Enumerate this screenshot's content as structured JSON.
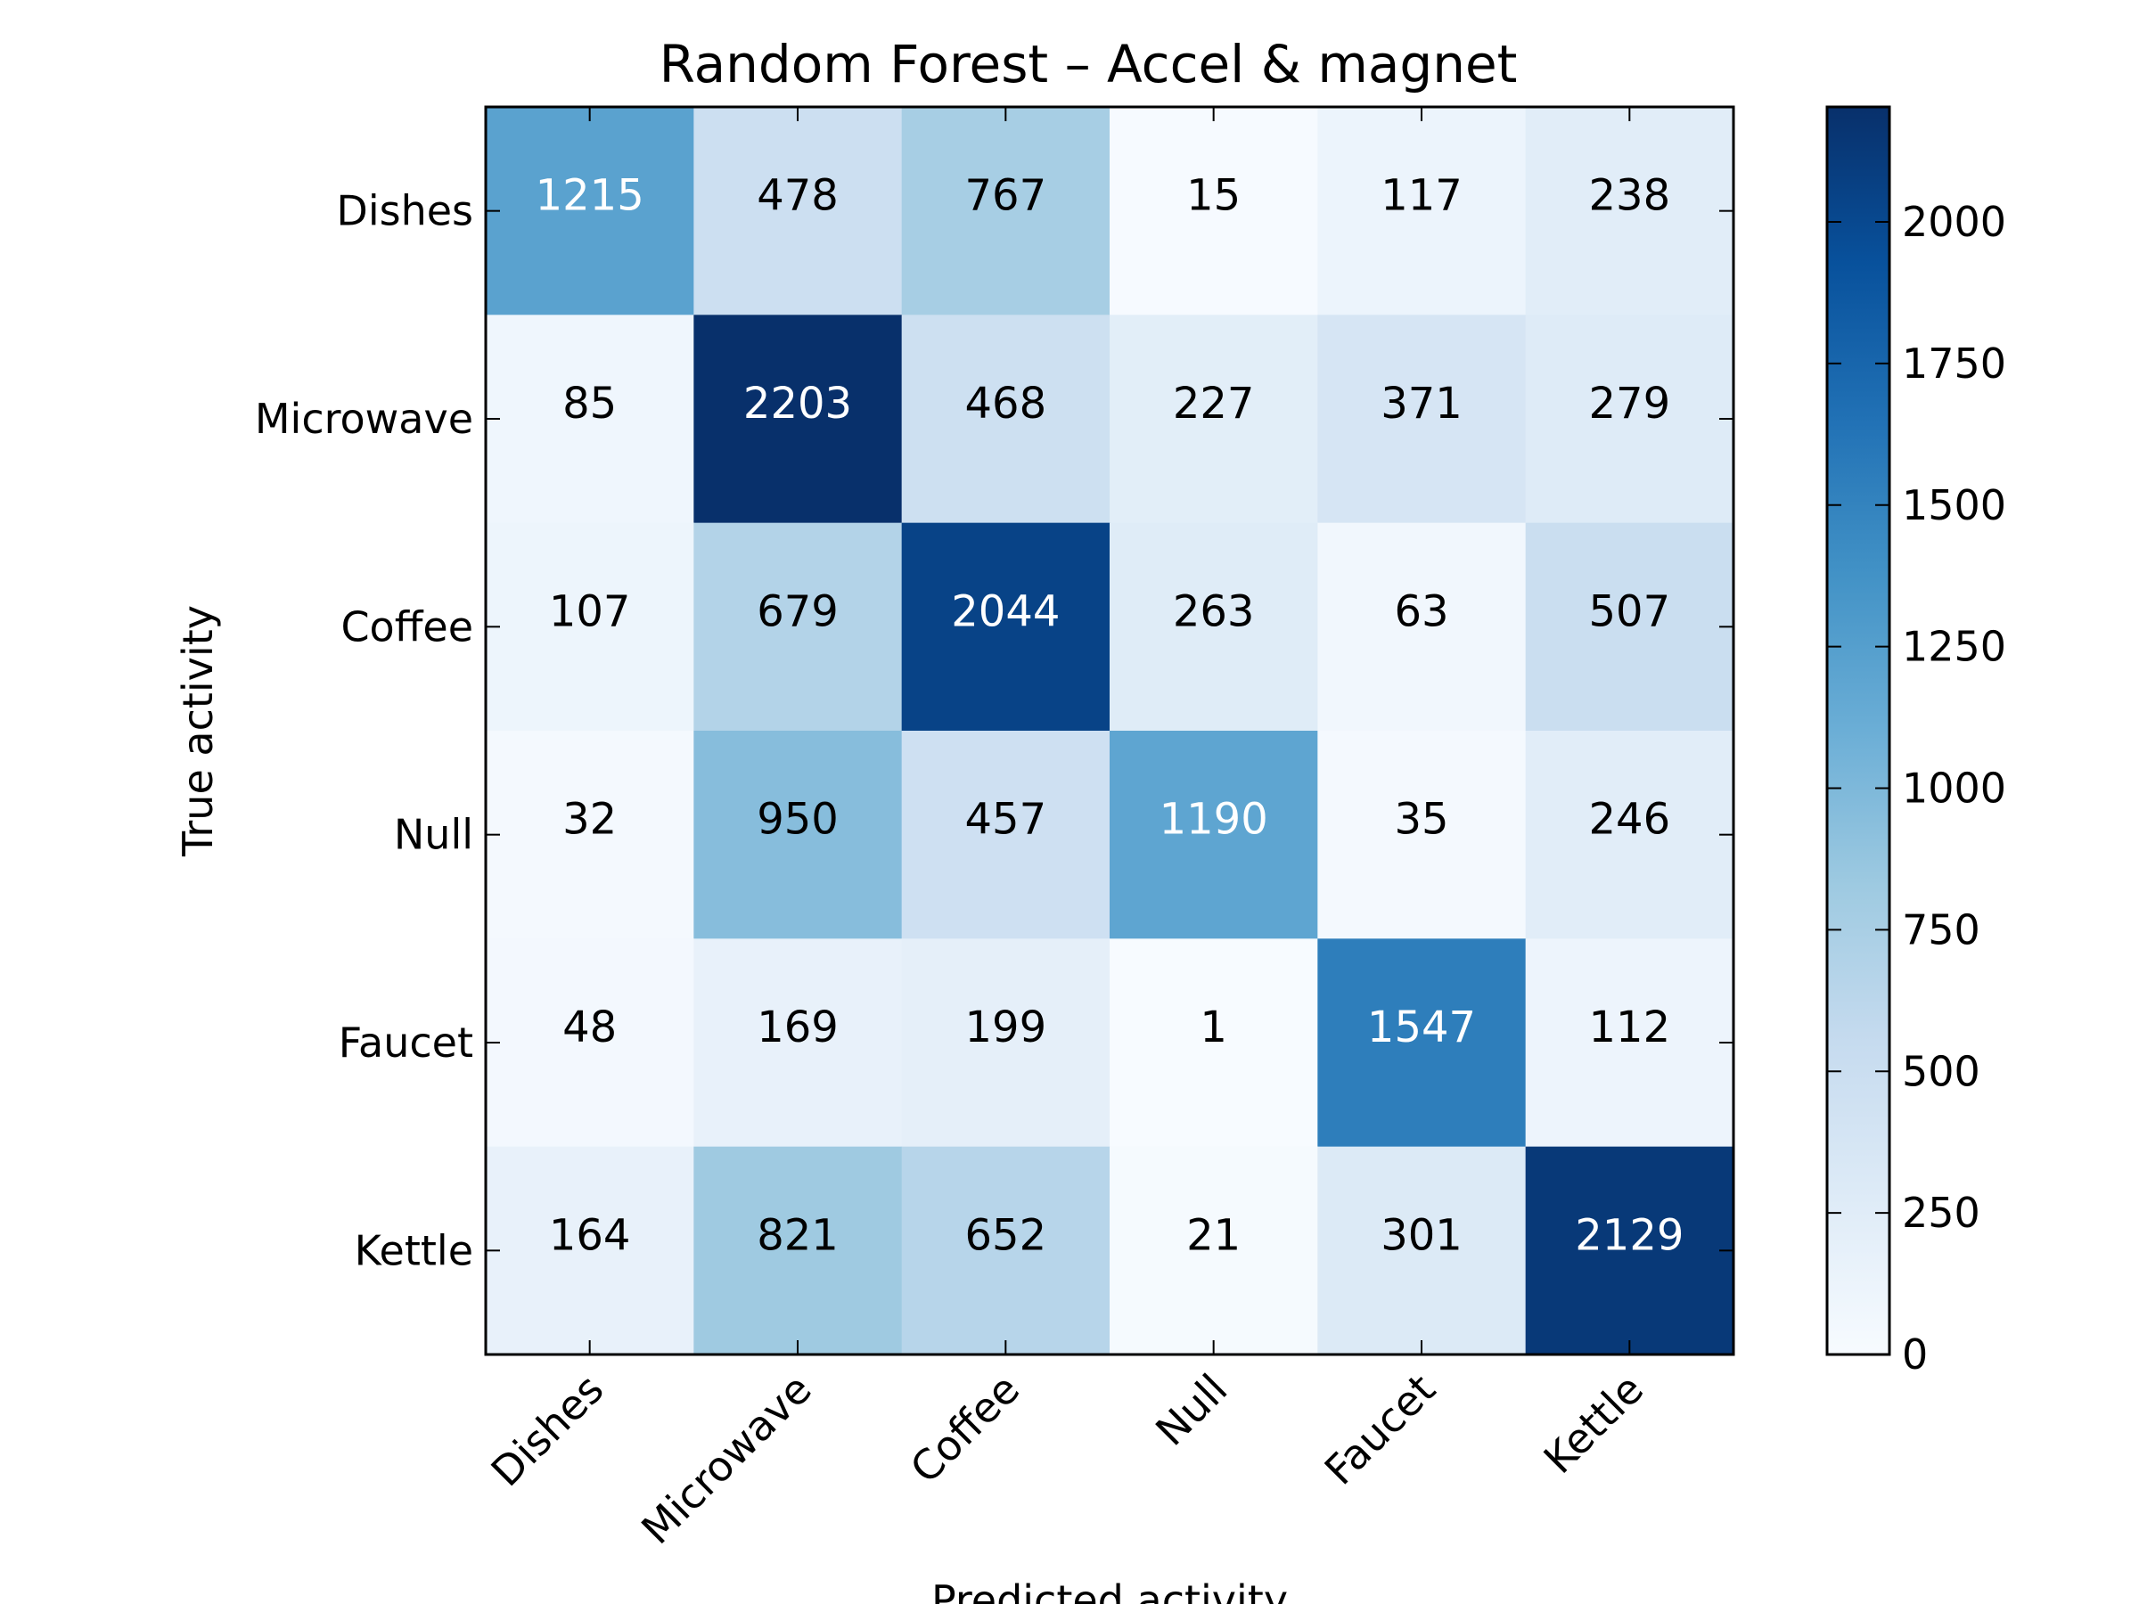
{
  "chart_data": {
    "type": "heatmap",
    "title": "Random Forest – Accel & magnet",
    "xlabel": "Predicted activity",
    "ylabel": "True activity",
    "x_categories": [
      "Dishes",
      "Microwave",
      "Coffee",
      "Null",
      "Faucet",
      "Kettle"
    ],
    "y_categories": [
      "Dishes",
      "Microwave",
      "Coffee",
      "Null",
      "Faucet",
      "Kettle"
    ],
    "values": [
      [
        1215,
        478,
        767,
        15,
        117,
        238
      ],
      [
        85,
        2203,
        468,
        227,
        371,
        279
      ],
      [
        107,
        679,
        2044,
        263,
        63,
        507
      ],
      [
        32,
        950,
        457,
        1190,
        35,
        246
      ],
      [
        48,
        169,
        199,
        1,
        1547,
        112
      ],
      [
        164,
        821,
        652,
        21,
        301,
        2129
      ]
    ],
    "colormap": "Blues",
    "colorbar": {
      "range": [
        0,
        2203
      ],
      "ticks": [
        0,
        250,
        500,
        750,
        1000,
        1250,
        1500,
        1750,
        2000
      ]
    },
    "grid": false
  }
}
